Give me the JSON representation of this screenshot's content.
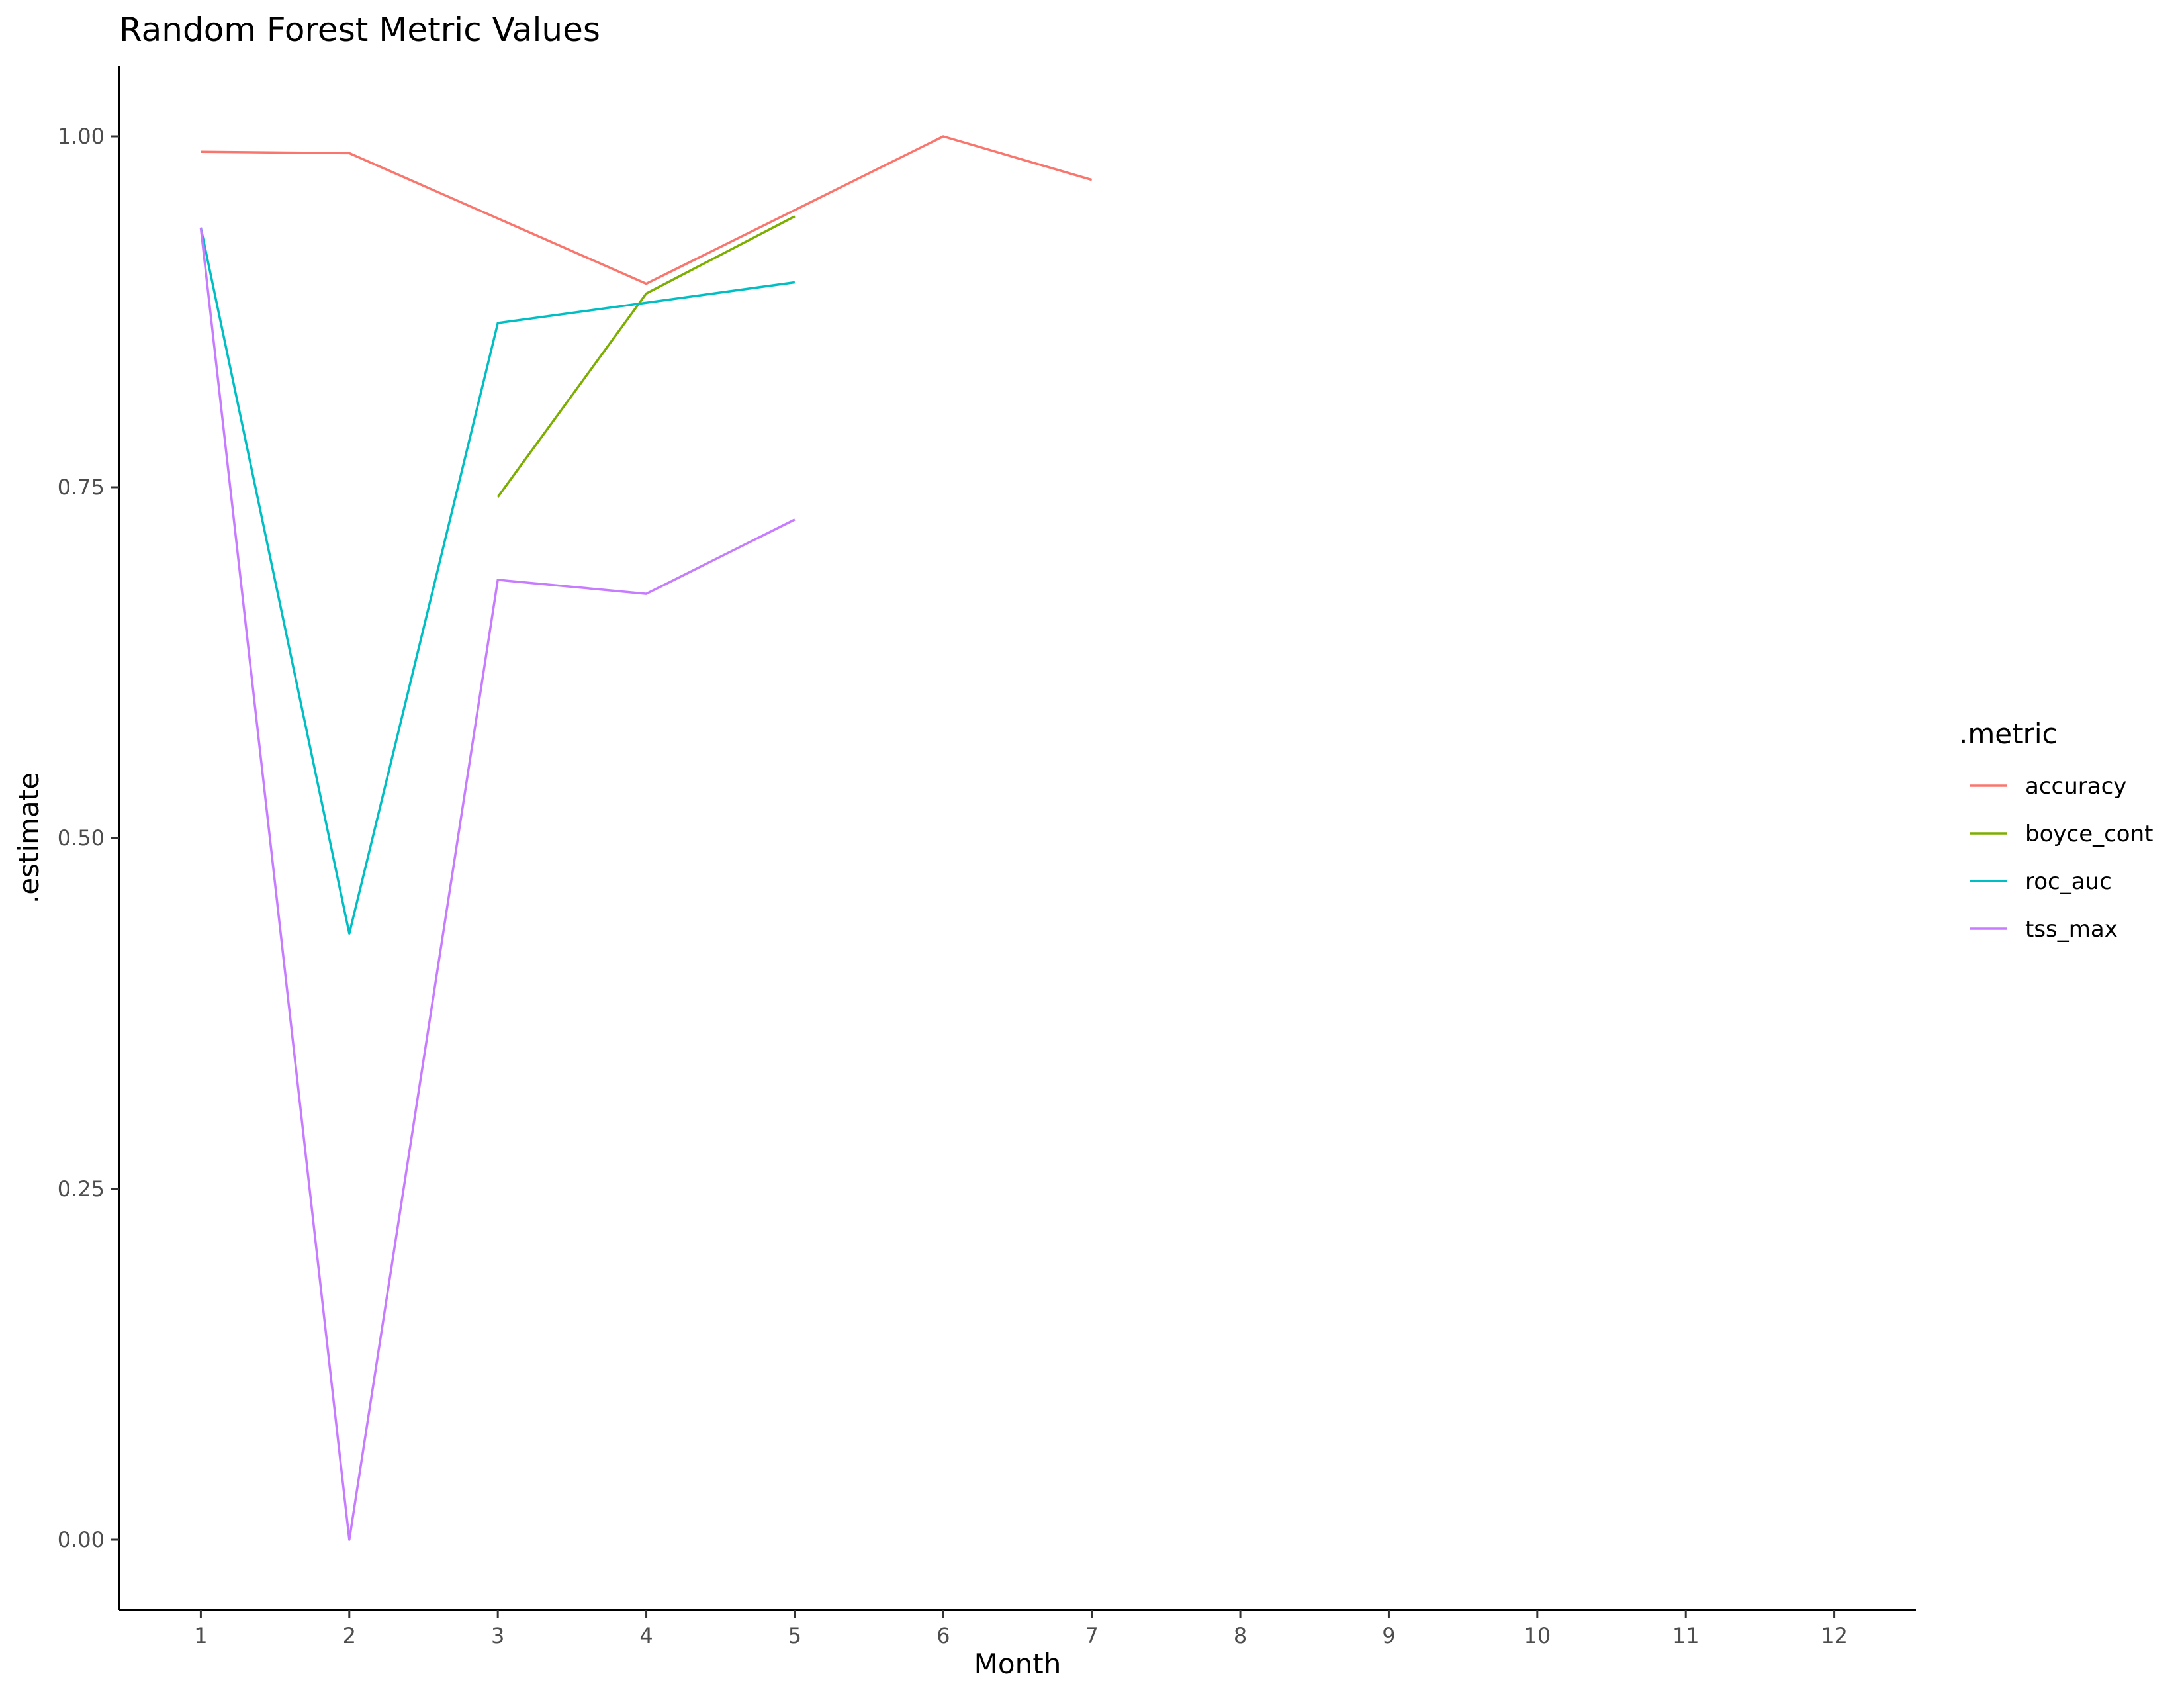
{
  "chart_data": {
    "type": "line",
    "title": "Random Forest Metric Values",
    "xlabel": "Month",
    "ylabel": ".estimate",
    "xlim": [
      0.45,
      12.55
    ],
    "ylim": [
      -0.05,
      1.05
    ],
    "x_ticks": [
      1,
      2,
      3,
      4,
      5,
      6,
      7,
      8,
      9,
      10,
      11,
      12
    ],
    "y_ticks": [
      0.0,
      0.25,
      0.5,
      0.75,
      1.0
    ],
    "y_tick_labels": [
      "0.00",
      "0.25",
      "0.50",
      "0.75",
      "1.00"
    ],
    "grid": false,
    "legend": {
      "title": ".metric",
      "position": "right"
    },
    "series": [
      {
        "name": "accuracy",
        "color": "#F8766D",
        "points": [
          [
            1,
            0.989
          ],
          [
            2,
            0.988
          ],
          [
            4,
            0.895
          ],
          [
            6,
            1.0
          ],
          [
            7,
            0.969
          ]
        ]
      },
      {
        "name": "boyce_cont",
        "color": "#7CAE00",
        "points": [
          [
            3,
            0.743
          ],
          [
            4,
            0.888
          ],
          [
            5,
            0.943
          ]
        ]
      },
      {
        "name": "roc_auc",
        "color": "#00BFC4",
        "points": [
          [
            1,
            0.935
          ],
          [
            2,
            0.432
          ],
          [
            3,
            0.867
          ],
          [
            5,
            0.896
          ]
        ]
      },
      {
        "name": "tss_max",
        "color": "#C77CFF",
        "points": [
          [
            1,
            0.935
          ],
          [
            2,
            0.0
          ],
          [
            3,
            0.684
          ],
          [
            4,
            0.674
          ],
          [
            5,
            0.727
          ]
        ]
      }
    ]
  }
}
